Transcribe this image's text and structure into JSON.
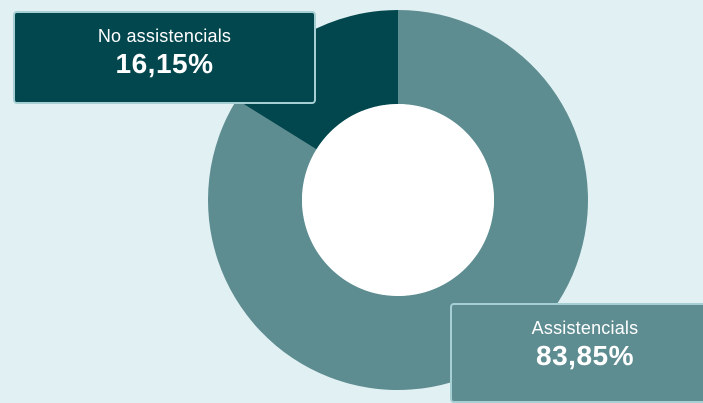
{
  "chart_data": {
    "type": "pie",
    "title": "",
    "categories": [
      "No assistencials",
      "Assistencials"
    ],
    "values": [
      16.15,
      83.85
    ],
    "series": [
      {
        "values": [
          16.15,
          83.85
        ]
      }
    ],
    "colors": [
      "#03474e",
      "#5e8d91"
    ],
    "hole_color": "#ffffff",
    "value_labels": [
      "16,15%",
      "83,85%"
    ],
    "legend": "none"
  }
}
